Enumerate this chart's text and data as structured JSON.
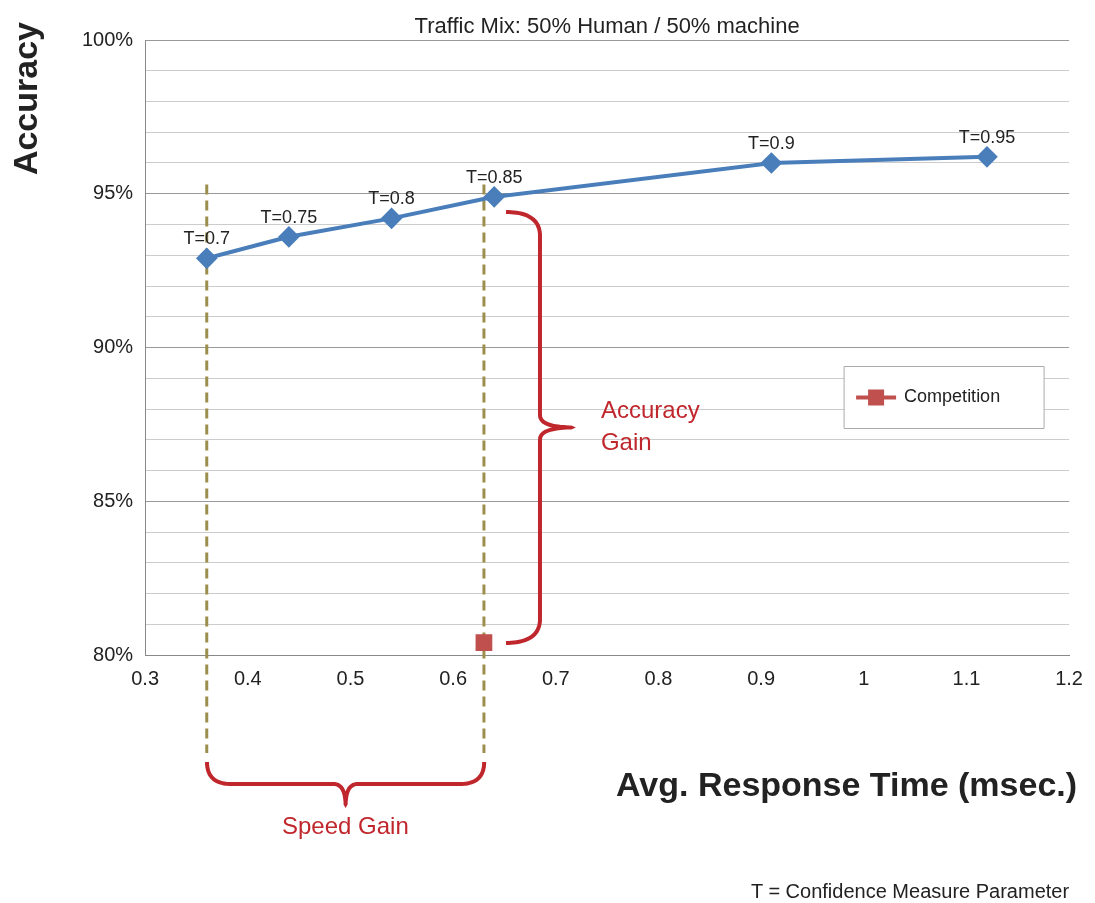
{
  "chart_data": {
    "type": "line",
    "title": "Traffic Mix: 50% Human / 50% machine",
    "xlabel": "Avg. Response Time (msec.)",
    "ylabel": "Accuracy",
    "series": [
      {
        "color": "#4a7ebb",
        "x": [
          0.36,
          0.44,
          0.54,
          0.64,
          0.91,
          1.12
        ],
        "values": [
          92.9,
          93.6,
          94.2,
          94.9,
          96.0,
          96.2
        ],
        "marker": "diamond"
      },
      {
        "name": "Competition",
        "color": "#c0504d",
        "x": [
          0.63
        ],
        "values": [
          80.4
        ],
        "marker": "square"
      }
    ],
    "xlim": [
      0.3,
      1.2
    ],
    "xticks": [
      0.3,
      0.4,
      0.5,
      0.6,
      0.7,
      0.8,
      0.9,
      1,
      1.1,
      1.2
    ],
    "ylim": [
      80,
      100
    ],
    "yticks": [
      {
        "value": 80,
        "label": "80%"
      },
      {
        "value": 81,
        "label": null
      },
      {
        "value": 82,
        "label": null
      },
      {
        "value": 83,
        "label": null
      },
      {
        "value": 84,
        "label": null
      },
      {
        "value": 85,
        "label": "85%"
      },
      {
        "value": 86,
        "label": null
      },
      {
        "value": 87,
        "label": null
      },
      {
        "value": 88,
        "label": null
      },
      {
        "value": 89,
        "label": null
      },
      {
        "value": 90,
        "label": "90%"
      },
      {
        "value": 91,
        "label": null
      },
      {
        "value": 92,
        "label": null
      },
      {
        "value": 93,
        "label": null
      },
      {
        "value": 94,
        "label": null
      },
      {
        "value": 95,
        "label": "95%"
      },
      {
        "value": 96,
        "label": null
      },
      {
        "value": 97,
        "label": null
      },
      {
        "value": 98,
        "label": null
      },
      {
        "value": 99,
        "label": null
      },
      {
        "value": 100,
        "label": "100%"
      }
    ],
    "grid": "y",
    "legend": "right",
    "line_style": "solid",
    "ref_lines": [
      {
        "axis": "x",
        "value": 0.36,
        "color": "#9c8f4e",
        "line_style": "dashed"
      },
      {
        "axis": "x",
        "value": 0.63,
        "color": "#9c8f4e",
        "line_style": "dashed"
      }
    ],
    "annotations": [
      {
        "text": "T=0.7",
        "x": 0.36,
        "y": 92.9
      },
      {
        "text": "T=0.75",
        "x": 0.44,
        "y": 93.6
      },
      {
        "text": "T=0.8",
        "x": 0.54,
        "y": 94.2
      },
      {
        "text": "T=0.85",
        "x": 0.64,
        "y": 94.9
      },
      {
        "text": "T=0.9",
        "x": 0.91,
        "y": 96.0
      },
      {
        "text": "T=0.95",
        "x": 1.12,
        "y": 96.2
      },
      "Accuracy Gain",
      "Speed Gain",
      "T = Confidence Measure Parameter"
    ]
  }
}
